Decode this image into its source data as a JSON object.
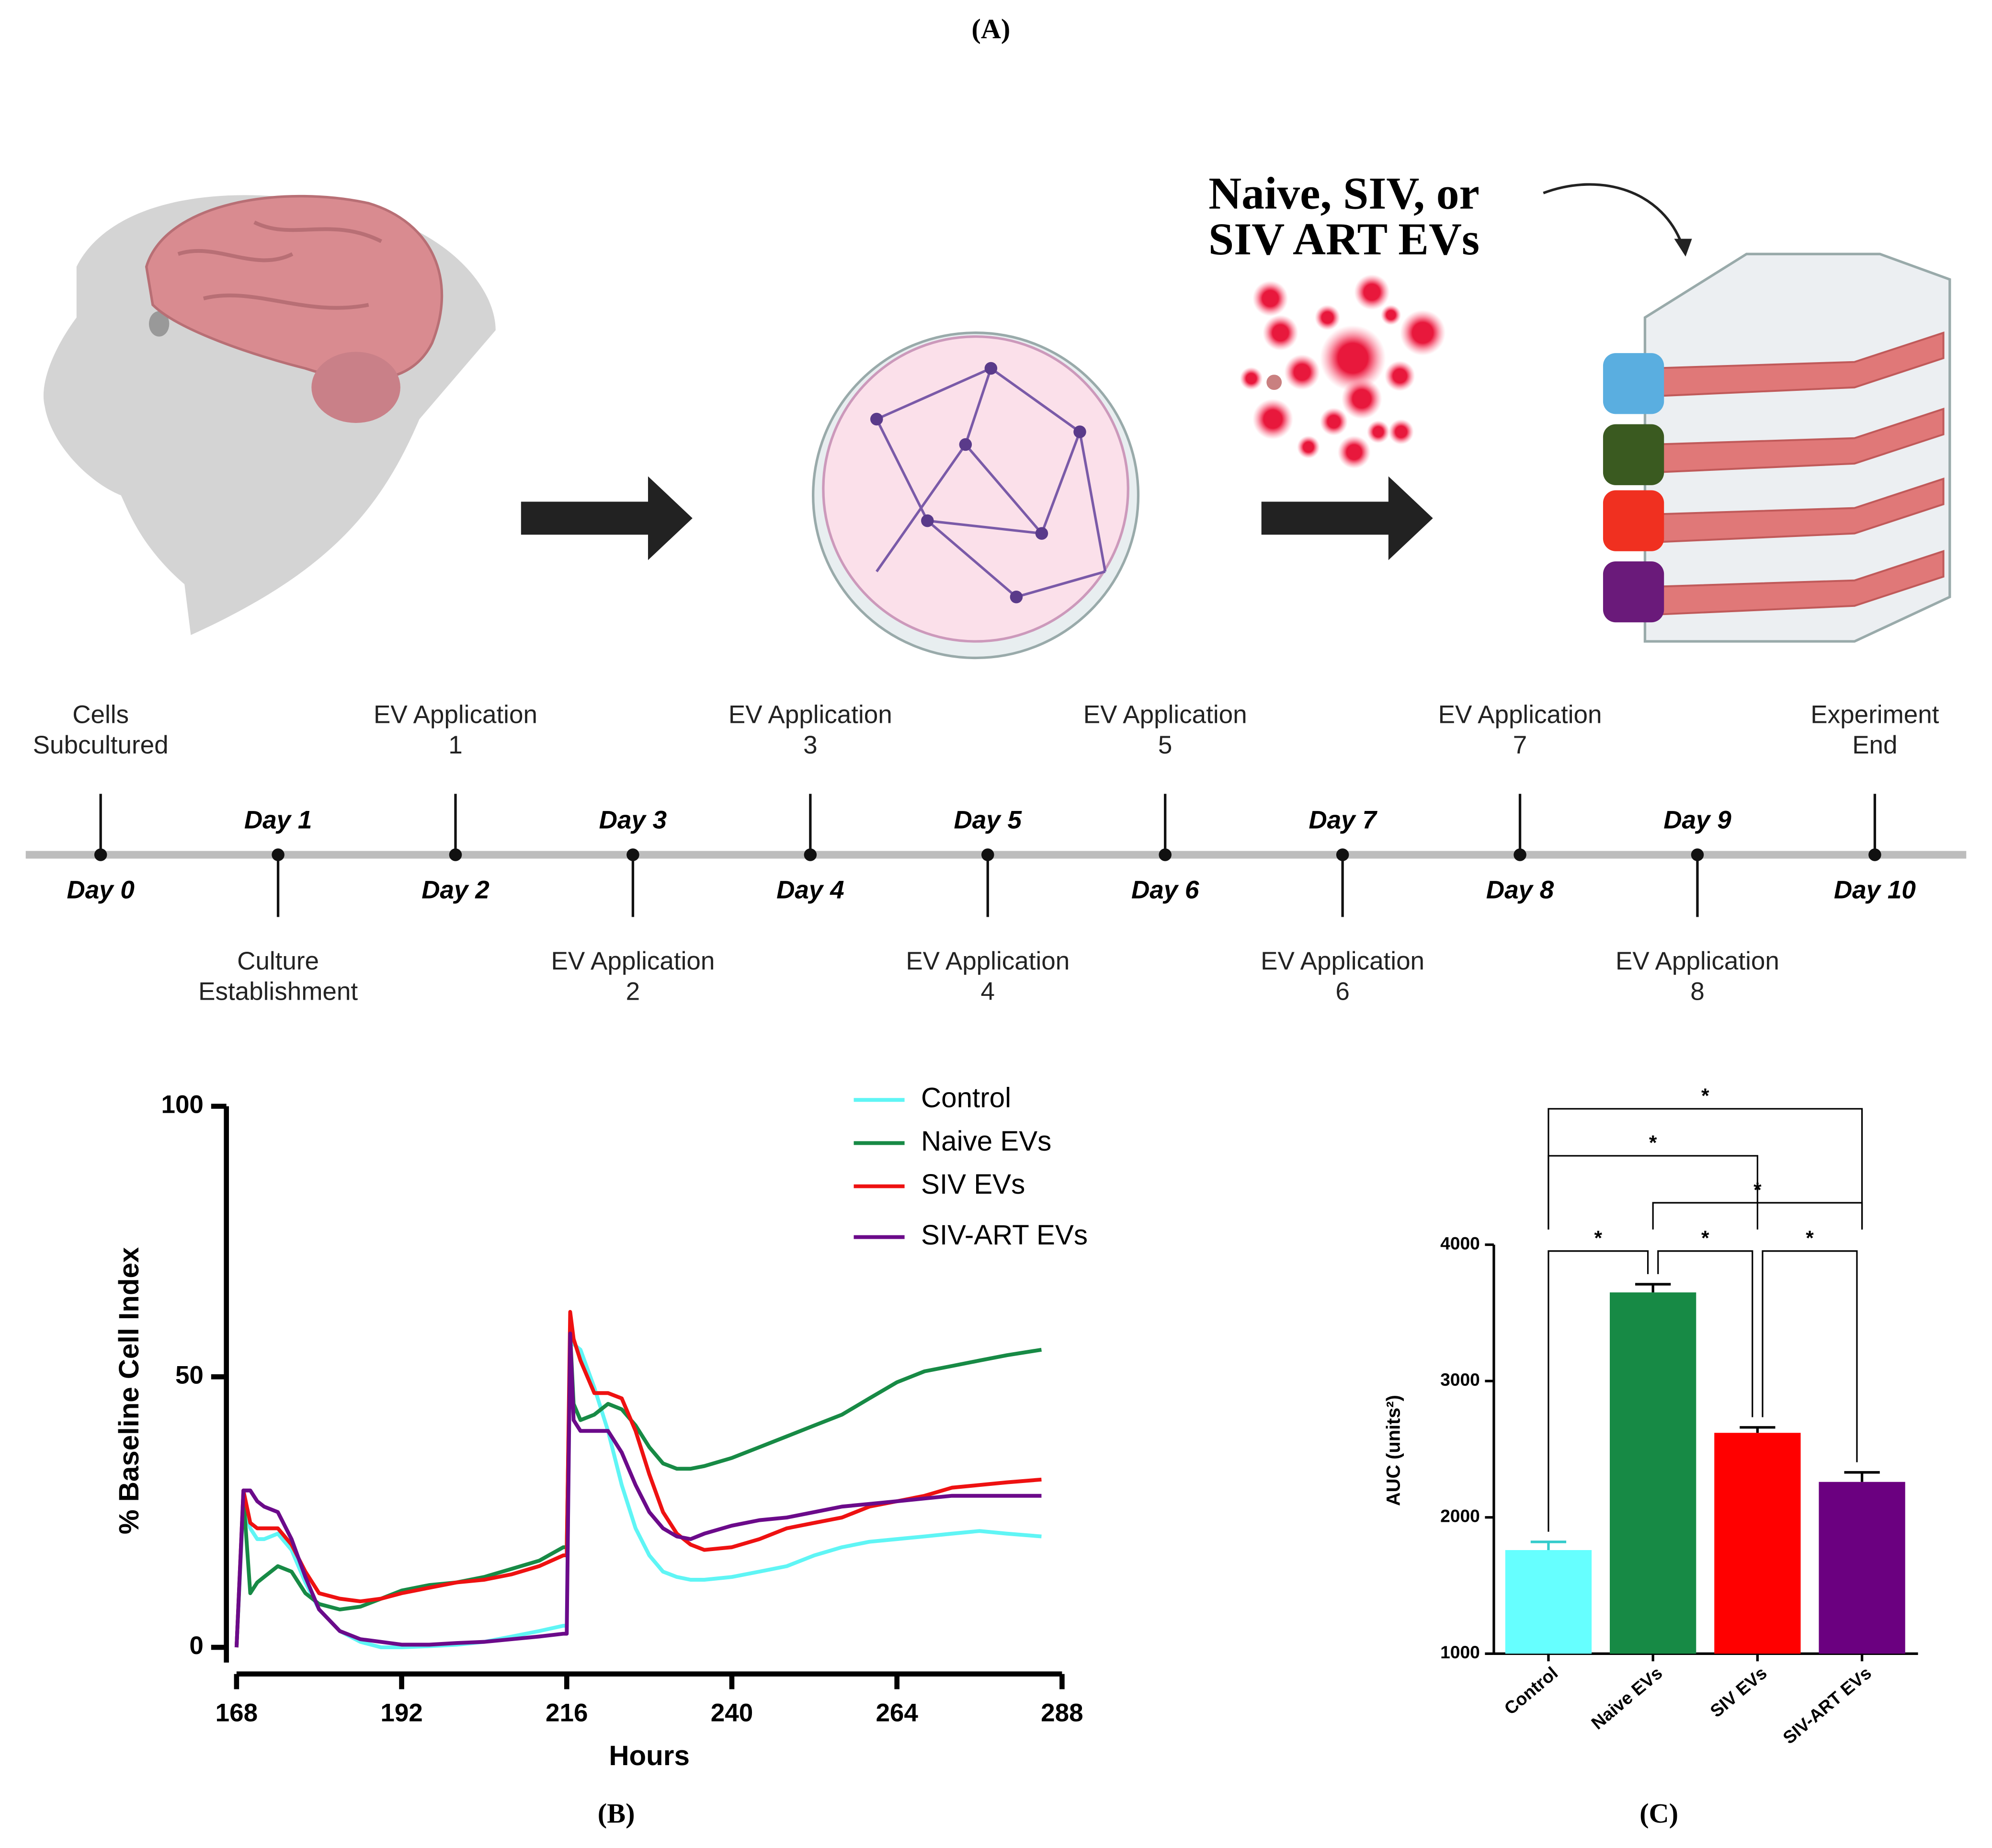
{
  "panel_a": {
    "label": "(A)",
    "heading": [
      "Naive, SIV, or",
      "SIV ART EVs"
    ],
    "timeline": [
      {
        "day": "Day 0",
        "text": [
          "Cells",
          "Subcultured"
        ]
      },
      {
        "day": "Day 1",
        "text": [
          "Culture",
          "Establishment"
        ]
      },
      {
        "day": "Day 2",
        "text": [
          "EV Application",
          "1"
        ]
      },
      {
        "day": "Day 3",
        "text": [
          "EV Application",
          "2"
        ]
      },
      {
        "day": "Day 4",
        "text": [
          "EV Application",
          "3"
        ]
      },
      {
        "day": "Day 5",
        "text": [
          "EV Application",
          "4"
        ]
      },
      {
        "day": "Day 6",
        "text": [
          "EV Application",
          "5"
        ]
      },
      {
        "day": "Day 7",
        "text": [
          "EV Application",
          "6"
        ]
      },
      {
        "day": "Day 8",
        "text": [
          "EV Application",
          "7"
        ]
      },
      {
        "day": "Day 9",
        "text": [
          "EV Application",
          "8"
        ]
      },
      {
        "day": "Day 10",
        "text": [
          "Experiment",
          "End"
        ]
      }
    ]
  },
  "chart_data": [
    {
      "type": "line",
      "panel_label": "(B)",
      "xlabel": "Hours",
      "ylabel": "% Baseline Cell Index",
      "x": [
        168,
        169,
        170,
        171,
        172,
        174,
        176,
        178,
        180,
        183,
        186,
        189,
        192,
        196,
        200,
        204,
        208,
        212,
        215.5,
        216,
        216.5,
        217,
        218,
        220,
        222,
        224,
        226,
        228,
        230,
        232,
        234,
        236,
        240,
        244,
        248,
        252,
        256,
        260,
        264,
        268,
        272,
        276,
        280,
        285
      ],
      "xlim": [
        168,
        288
      ],
      "xticks": [
        168,
        192,
        216,
        240,
        264,
        288
      ],
      "ylim": [
        0,
        100
      ],
      "yticks": [
        0,
        50,
        100
      ],
      "series": [
        {
          "name": "Control",
          "color": "#5ff5f5",
          "values": [
            0,
            27,
            22,
            20,
            20,
            21,
            18,
            12,
            7,
            3,
            1,
            0,
            0,
            0.2,
            0.5,
            1,
            2,
            3,
            4,
            4,
            57,
            56,
            55,
            48,
            40,
            30,
            22,
            17,
            14,
            13,
            12.5,
            12.5,
            13,
            14,
            15,
            17,
            18.5,
            19.5,
            20,
            20.5,
            21,
            21.5,
            21,
            20.5
          ]
        },
        {
          "name": "Naive EVs",
          "color": "#178a45",
          "values": [
            0,
            28,
            10,
            12,
            13,
            15,
            14,
            10,
            8,
            7,
            7.5,
            9,
            10.5,
            11.5,
            12,
            13,
            14.5,
            16,
            18.5,
            18.5,
            58,
            45,
            42,
            43,
            45,
            44,
            41,
            37,
            34,
            33,
            33,
            33.5,
            35,
            37,
            39,
            41,
            43,
            46,
            49,
            51,
            52,
            53,
            54,
            55
          ]
        },
        {
          "name": "SIV EVs",
          "color": "#ee1111",
          "values": [
            0,
            29,
            23,
            22,
            22,
            22,
            19,
            14,
            10,
            9,
            8.5,
            9,
            10,
            11,
            12,
            12.5,
            13.5,
            15,
            17,
            17,
            62,
            57,
            53,
            47,
            47,
            46,
            40,
            32,
            25,
            21,
            19,
            18,
            18.5,
            20,
            22,
            23,
            24,
            26,
            27,
            28,
            29.5,
            30,
            30.5,
            31
          ]
        },
        {
          "name": "SIV-ART EVs",
          "color": "#6b0a8a",
          "values": [
            0,
            29,
            29,
            27,
            26,
            25,
            20,
            13,
            7,
            3,
            1.5,
            1,
            0.5,
            0.5,
            0.8,
            1,
            1.5,
            2,
            2.5,
            2.5,
            58,
            42,
            40,
            40,
            40,
            36,
            30,
            25,
            22,
            20.5,
            20,
            21,
            22.5,
            23.5,
            24,
            25,
            26,
            26.5,
            27,
            27.5,
            28,
            28,
            28,
            28
          ]
        }
      ]
    },
    {
      "type": "bar",
      "panel_label": "(C)",
      "ylabel": "AUC (units²)",
      "categories": [
        "Control",
        "Naive EVs",
        "SIV EVs",
        "SIV-ART EVs"
      ],
      "values": [
        1760,
        3650,
        2620,
        2260
      ],
      "errors": [
        60,
        60,
        40,
        70
      ],
      "colors": [
        "#66ffff",
        "#178a45",
        "#ff0000",
        "#6b0080"
      ],
      "ylim": [
        1000,
        4000
      ],
      "yticks": [
        1000,
        2000,
        3000,
        4000
      ],
      "comparisons": [
        {
          "groups": [
            "Control",
            "Naive EVs"
          ],
          "label": "*"
        },
        {
          "groups": [
            "Naive EVs",
            "SIV EVs"
          ],
          "label": "*"
        },
        {
          "groups": [
            "SIV EVs",
            "SIV-ART EVs"
          ],
          "label": "*"
        },
        {
          "groups": [
            "Naive EVs",
            "SIV-ART EVs"
          ],
          "label": "*"
        },
        {
          "groups": [
            "Control",
            "SIV EVs"
          ],
          "label": "*"
        },
        {
          "groups": [
            "Control",
            "SIV-ART EVs"
          ],
          "label": "*"
        }
      ]
    }
  ]
}
